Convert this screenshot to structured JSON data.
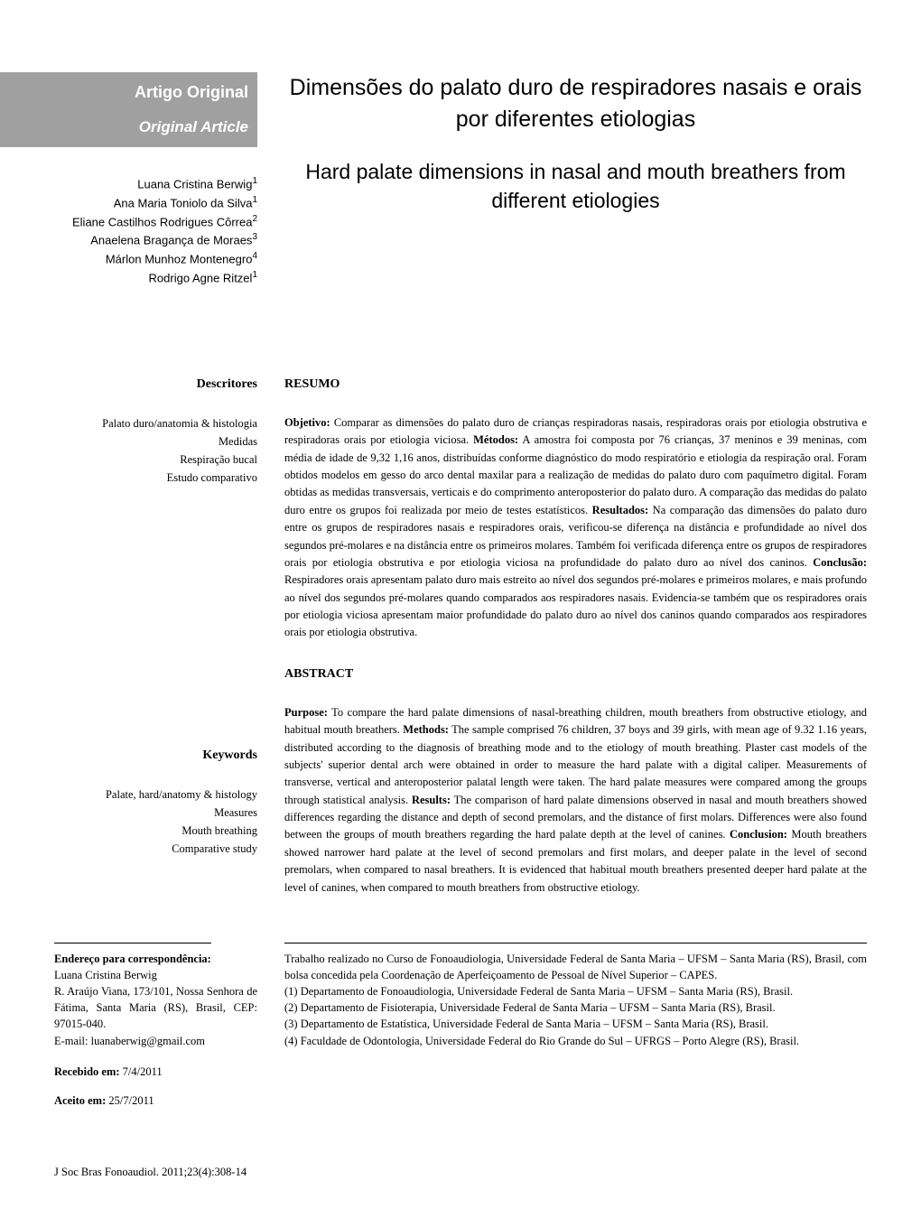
{
  "article_type": {
    "pt": "Artigo Original",
    "en": "Original Article"
  },
  "titles": {
    "pt": "Dimensões do palato duro de respiradores nasais e orais por diferentes etiologias",
    "en": "Hard palate dimensions in nasal and mouth breathers from different etiologies"
  },
  "authors": [
    {
      "name": "Luana Cristina Berwig",
      "aff": "1"
    },
    {
      "name": "Ana Maria Toniolo da Silva",
      "aff": "1"
    },
    {
      "name": "Eliane Castilhos Rodrigues Côrrea",
      "aff": "2"
    },
    {
      "name": "Anaelena Bragança de Moraes",
      "aff": "3"
    },
    {
      "name": "Márlon Munhoz Montenegro",
      "aff": "4"
    },
    {
      "name": "Rodrigo Agne Ritzel",
      "aff": "1"
    }
  ],
  "descritores": {
    "heading": "Descritores",
    "items": [
      "Palato duro/anatomia & histologia",
      "Medidas",
      "Respiração bucal",
      "Estudo comparativo"
    ]
  },
  "keywords": {
    "heading": "Keywords",
    "items": [
      "Palate, hard/anatomy & histology",
      "Measures",
      "Mouth breathing",
      "Comparative study"
    ]
  },
  "resumo": {
    "heading": "RESUMO",
    "text": "Objetivo: Comparar as dimensões do palato duro de crianças respiradoras nasais, respiradoras orais por etiologia obstrutiva e respiradoras orais por etiologia viciosa. Métodos: A amostra foi composta por 76 crianças, 37 meninos e 39 meninas, com média de idade de 9,32 1,16 anos, distribuídas conforme diagnóstico do modo respiratório e etiologia da respiração oral. Foram obtidos modelos em gesso do arco dental maxilar para a realização de medidas do palato duro com paquímetro digital. Foram obtidas as medidas transversais, verticais e do comprimento anteroposterior do palato duro. A comparação das medidas do palato duro entre os grupos foi realizada por meio de testes estatísticos. Resultados: Na comparação das dimensões do palato duro entre os grupos de respiradores nasais e respiradores orais, verificou-se diferença na distância e profundidade ao nível dos segundos pré-molares e na distância entre os primeiros molares. Também foi verificada diferença entre os grupos de respiradores orais por etiologia obstrutiva e por etiologia viciosa na profundidade do palato duro ao nível dos caninos. Conclusão: Respiradores orais apresentam palato duro mais estreito ao nível dos segundos pré-molares e primeiros molares, e mais profundo ao nível dos segundos pré-molares quando comparados aos respiradores nasais. Evidencia-se também que os respiradores orais por etiologia viciosa apresentam maior profundidade do palato duro ao nível dos caninos quando comparados aos respiradores orais por etiologia obstrutiva."
  },
  "abstract": {
    "heading": "ABSTRACT",
    "text": "Purpose: To compare the hard palate dimensions of nasal-breathing children, mouth breathers from obstructive etiology, and habitual mouth breathers. Methods: The sample comprised 76 children, 37 boys and 39 girls, with mean age of 9.32 1.16 years, distributed according to the diagnosis of breathing mode and to the etiology of mouth breathing. Plaster cast models of the subjects' superior dental arch were obtained in order to measure the hard palate with a digital caliper. Measurements of transverse, vertical and anteroposterior palatal length were taken. The hard palate measures were compared among the groups through statistical analysis. Results: The comparison of hard palate dimensions observed in nasal and mouth breathers showed differences regarding the distance and depth of second premolars, and the distance of first molars. Differences were also found between the groups of mouth breathers regarding the hard palate depth at the level of canines. Conclusion: Mouth breathers showed narrower hard palate at the level of second premolars and first molars, and deeper palate in the level of second premolars, when compared to nasal breathers. It is evidenced that habitual mouth breathers presented deeper hard palate at the level of canines, when compared to mouth breathers from obstructive etiology."
  },
  "correspondence": {
    "heading": "Endereço para correspondência:",
    "name": "Luana Cristina Berwig",
    "address": "R. Araújo Viana, 173/101, Nossa Senhora de Fátima, Santa Maria (RS), Brasil, CEP: 97015-040.",
    "email_label": "E-mail:",
    "email": "luanaberwig@gmail.com"
  },
  "dates": {
    "received_label": "Recebido em:",
    "received": "7/4/2011",
    "accepted_label": "Aceito em:",
    "accepted": "25/7/2011"
  },
  "affiliations": {
    "work": "Trabalho realizado no Curso de Fonoaudiologia, Universidade Federal de Santa Maria – UFSM – Santa Maria (RS), Brasil, com bolsa concedida pela Coordenação de Aperfeiçoamento de Pessoal de Nível Superior – CAPES.",
    "list": [
      "(1) Departamento de Fonoaudiologia, Universidade Federal de Santa Maria – UFSM – Santa Maria (RS), Brasil.",
      "(2) Departamento de Fisioterapia, Universidade Federal de Santa Maria – UFSM – Santa Maria (RS), Brasil.",
      "(3) Departamento de Estatística, Universidade Federal de Santa Maria – UFSM – Santa Maria (RS), Brasil.",
      "(4) Faculdade de Odontologia, Universidade Federal do Rio Grande do Sul – UFRGS – Porto Alegre (RS), Brasil."
    ]
  },
  "journal_ref": "J Soc Bras Fonoaudiol. 2011;23(4):308-14"
}
